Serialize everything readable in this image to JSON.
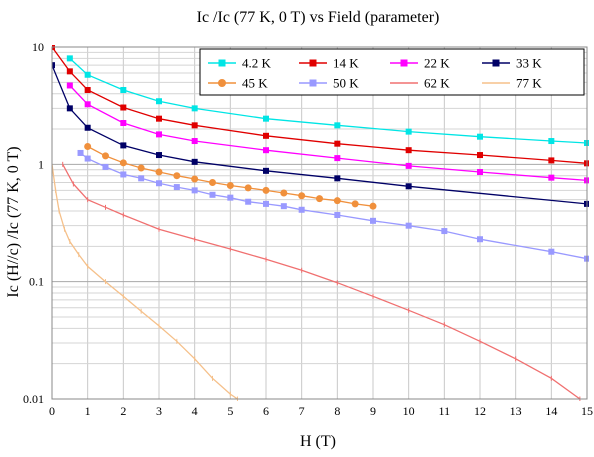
{
  "chart_data": {
    "type": "line",
    "title": "Ic /Ic  (77 K, 0 T) vs Field (parameter)",
    "xlabel": "H (T)",
    "ylabel": "Ic (H//c) /Ic (77 K, 0 T)",
    "xscale": "linear",
    "yscale": "log",
    "xlim": [
      0,
      15
    ],
    "ylim": [
      0.01,
      10
    ],
    "x_ticks": [
      "0",
      "1",
      "2",
      "3",
      "4",
      "5",
      "6",
      "7",
      "8",
      "9",
      "10",
      "11",
      "12",
      "13",
      "14",
      "15"
    ],
    "y_ticks": [
      "0.01",
      "0.1",
      "1",
      "10"
    ],
    "grid": true,
    "legend_position": "top-right",
    "series": [
      {
        "name": "4.2 K",
        "color": "#00e5e5",
        "marker": "square",
        "x": [
          0.5,
          1,
          2,
          3,
          4,
          6,
          8,
          10,
          12,
          14,
          15
        ],
        "y": [
          8.0,
          5.8,
          4.3,
          3.45,
          3.0,
          2.45,
          2.15,
          1.9,
          1.72,
          1.58,
          1.52
        ]
      },
      {
        "name": "14 K",
        "color": "#e00000",
        "marker": "square",
        "x": [
          0,
          0.5,
          1,
          2,
          3,
          4,
          6,
          8,
          10,
          12,
          14,
          15
        ],
        "y": [
          10.0,
          6.2,
          4.3,
          3.05,
          2.45,
          2.15,
          1.75,
          1.5,
          1.32,
          1.2,
          1.08,
          1.02
        ]
      },
      {
        "name": "22 K",
        "color": "#ff00ff",
        "marker": "square",
        "x": [
          0.5,
          1,
          2,
          3,
          4,
          6,
          8,
          10,
          12,
          14,
          15
        ],
        "y": [
          4.7,
          3.25,
          2.25,
          1.8,
          1.58,
          1.32,
          1.13,
          0.97,
          0.86,
          0.77,
          0.73
        ]
      },
      {
        "name": "33 K",
        "color": "#000066",
        "marker": "square",
        "x": [
          0,
          0.5,
          1,
          2,
          3,
          4,
          6,
          8,
          10,
          15
        ],
        "y": [
          7.0,
          3.0,
          2.05,
          1.45,
          1.2,
          1.05,
          0.88,
          0.76,
          0.65,
          0.46
        ]
      },
      {
        "name": "45 K",
        "color": "#f0903c",
        "marker": "circle",
        "x": [
          1,
          1.5,
          2,
          2.5,
          3,
          3.5,
          4,
          4.5,
          5,
          5.5,
          6,
          6.5,
          7,
          7.5,
          8,
          8.5,
          9
        ],
        "y": [
          1.42,
          1.18,
          1.03,
          0.93,
          0.86,
          0.8,
          0.75,
          0.7,
          0.66,
          0.63,
          0.6,
          0.57,
          0.54,
          0.51,
          0.49,
          0.46,
          0.44
        ]
      },
      {
        "name": "50 K",
        "color": "#9999ff",
        "marker": "square",
        "x": [
          0.8,
          1,
          1.5,
          2,
          2.5,
          3,
          3.5,
          4,
          4.5,
          5,
          5.5,
          6,
          6.5,
          7,
          8,
          9,
          10,
          11,
          12,
          14,
          15
        ],
        "y": [
          1.25,
          1.12,
          0.95,
          0.82,
          0.76,
          0.69,
          0.64,
          0.6,
          0.55,
          0.52,
          0.48,
          0.46,
          0.44,
          0.41,
          0.37,
          0.33,
          0.3,
          0.27,
          0.23,
          0.18,
          0.157
        ]
      },
      {
        "name": "62 K",
        "color": "#f07070",
        "marker": "none",
        "x": [
          0.3,
          0.6,
          1,
          1.5,
          2,
          3,
          4,
          5,
          6,
          7,
          8,
          9,
          10,
          11,
          12,
          13,
          14,
          14.8
        ],
        "y": [
          1.0,
          0.68,
          0.5,
          0.43,
          0.37,
          0.28,
          0.23,
          0.19,
          0.155,
          0.125,
          0.098,
          0.075,
          0.057,
          0.043,
          0.031,
          0.022,
          0.015,
          0.01
        ]
      },
      {
        "name": "77 K",
        "color": "#f5c08a",
        "marker": "none",
        "x": [
          0,
          0.1,
          0.2,
          0.35,
          0.5,
          0.75,
          1,
          1.5,
          2,
          2.5,
          3,
          3.5,
          4,
          4.5,
          5,
          5.2
        ],
        "y": [
          1.0,
          0.6,
          0.4,
          0.28,
          0.22,
          0.17,
          0.135,
          0.1,
          0.075,
          0.056,
          0.042,
          0.031,
          0.022,
          0.015,
          0.011,
          0.01
        ]
      }
    ]
  }
}
